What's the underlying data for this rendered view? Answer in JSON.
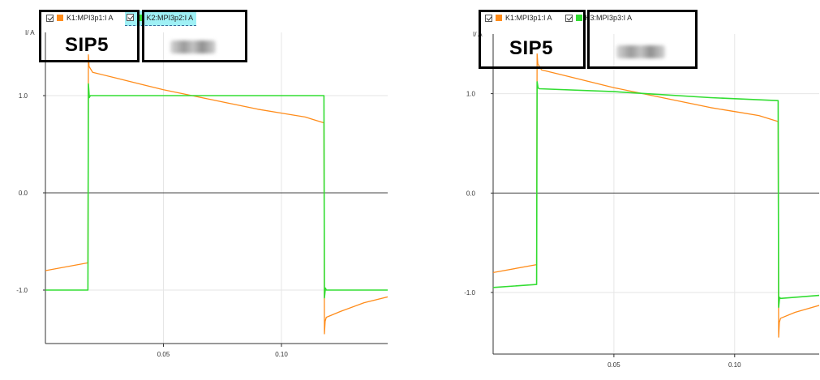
{
  "colors": {
    "orange": "#ff8c1a",
    "green": "#33dd33",
    "grid": "#e6e6e6",
    "axis": "#333333",
    "zero": "#444444",
    "selected_bg": "#9ff0f5"
  },
  "left": {
    "legend": [
      {
        "label": "K1:MPI3p1:I A",
        "color": "#ff8c1a",
        "selected": false
      },
      {
        "label": "K2:MPI3p2:I A",
        "color": "#33dd33",
        "selected": true
      }
    ],
    "device_label": "SIP5"
  },
  "right": {
    "legend": [
      {
        "label": "K1:MPI3p1:I A",
        "color": "#ff8c1a",
        "selected": false
      },
      {
        "label": "K3:MPI3p3:I A",
        "color": "#33dd33",
        "selected": false
      }
    ],
    "device_label": "SIP5"
  },
  "chart_data": [
    {
      "type": "line",
      "ylabel": "I/ A",
      "xlim": [
        0.0,
        0.145
      ],
      "ylim": [
        -1.55,
        1.65
      ],
      "xticks": [
        0.05,
        0.1
      ],
      "xtick_labels": [
        "0.05",
        "0.10"
      ],
      "yticks": [
        1.0,
        0.0,
        -1.0
      ],
      "ytick_labels": [
        "1.0",
        "0.0",
        "-1.0"
      ],
      "series": [
        {
          "name": "K1:MPI3p1:I A",
          "color": "#ff8c1a",
          "x": [
            0.0,
            0.018,
            0.0182,
            0.0185,
            0.02,
            0.03,
            0.04,
            0.05,
            0.06,
            0.07,
            0.08,
            0.09,
            0.1,
            0.11,
            0.118,
            0.1182,
            0.1185,
            0.119,
            0.125,
            0.135,
            0.145
          ],
          "y": [
            -0.8,
            -0.72,
            1.42,
            1.3,
            1.24,
            1.18,
            1.12,
            1.06,
            1.01,
            0.96,
            0.91,
            0.86,
            0.82,
            0.78,
            0.72,
            -1.45,
            -1.32,
            -1.28,
            -1.22,
            -1.13,
            -1.07
          ]
        },
        {
          "name": "K2:MPI3p2:I A",
          "color": "#33dd33",
          "x": [
            0.0,
            0.018,
            0.0182,
            0.0186,
            0.019,
            0.06,
            0.118,
            0.1182,
            0.1186,
            0.119,
            0.145
          ],
          "y": [
            -1.0,
            -1.0,
            1.12,
            0.98,
            1.0,
            1.0,
            1.0,
            -1.08,
            -0.98,
            -1.0,
            -1.0
          ]
        }
      ]
    },
    {
      "type": "line",
      "ylabel": "I/ A",
      "xlim": [
        0.0,
        0.135
      ],
      "ylim": [
        -1.62,
        1.6
      ],
      "xticks": [
        0.05,
        0.1
      ],
      "xtick_labels": [
        "0.05",
        "0.10"
      ],
      "yticks": [
        1.0,
        0.0,
        -1.0
      ],
      "ytick_labels": [
        "1.0",
        "0.0",
        "-1.0"
      ],
      "series": [
        {
          "name": "K1:MPI3p1:I A",
          "color": "#ff8c1a",
          "x": [
            0.0,
            0.018,
            0.0182,
            0.0185,
            0.02,
            0.03,
            0.04,
            0.05,
            0.06,
            0.07,
            0.08,
            0.09,
            0.1,
            0.11,
            0.118,
            0.1182,
            0.1185,
            0.119,
            0.125,
            0.135
          ],
          "y": [
            -0.8,
            -0.72,
            1.4,
            1.3,
            1.24,
            1.18,
            1.12,
            1.06,
            1.01,
            0.96,
            0.91,
            0.86,
            0.82,
            0.78,
            0.72,
            -1.45,
            -1.3,
            -1.26,
            -1.2,
            -1.13
          ]
        },
        {
          "name": "K3:MPI3p3:I A",
          "color": "#33dd33",
          "x": [
            0.0,
            0.018,
            0.0182,
            0.0186,
            0.019,
            0.05,
            0.07,
            0.09,
            0.118,
            0.1182,
            0.1186,
            0.119,
            0.135
          ],
          "y": [
            -0.95,
            -0.92,
            1.12,
            1.06,
            1.05,
            1.02,
            0.99,
            0.96,
            0.93,
            -1.15,
            -1.05,
            -1.06,
            -1.03
          ]
        }
      ]
    }
  ]
}
